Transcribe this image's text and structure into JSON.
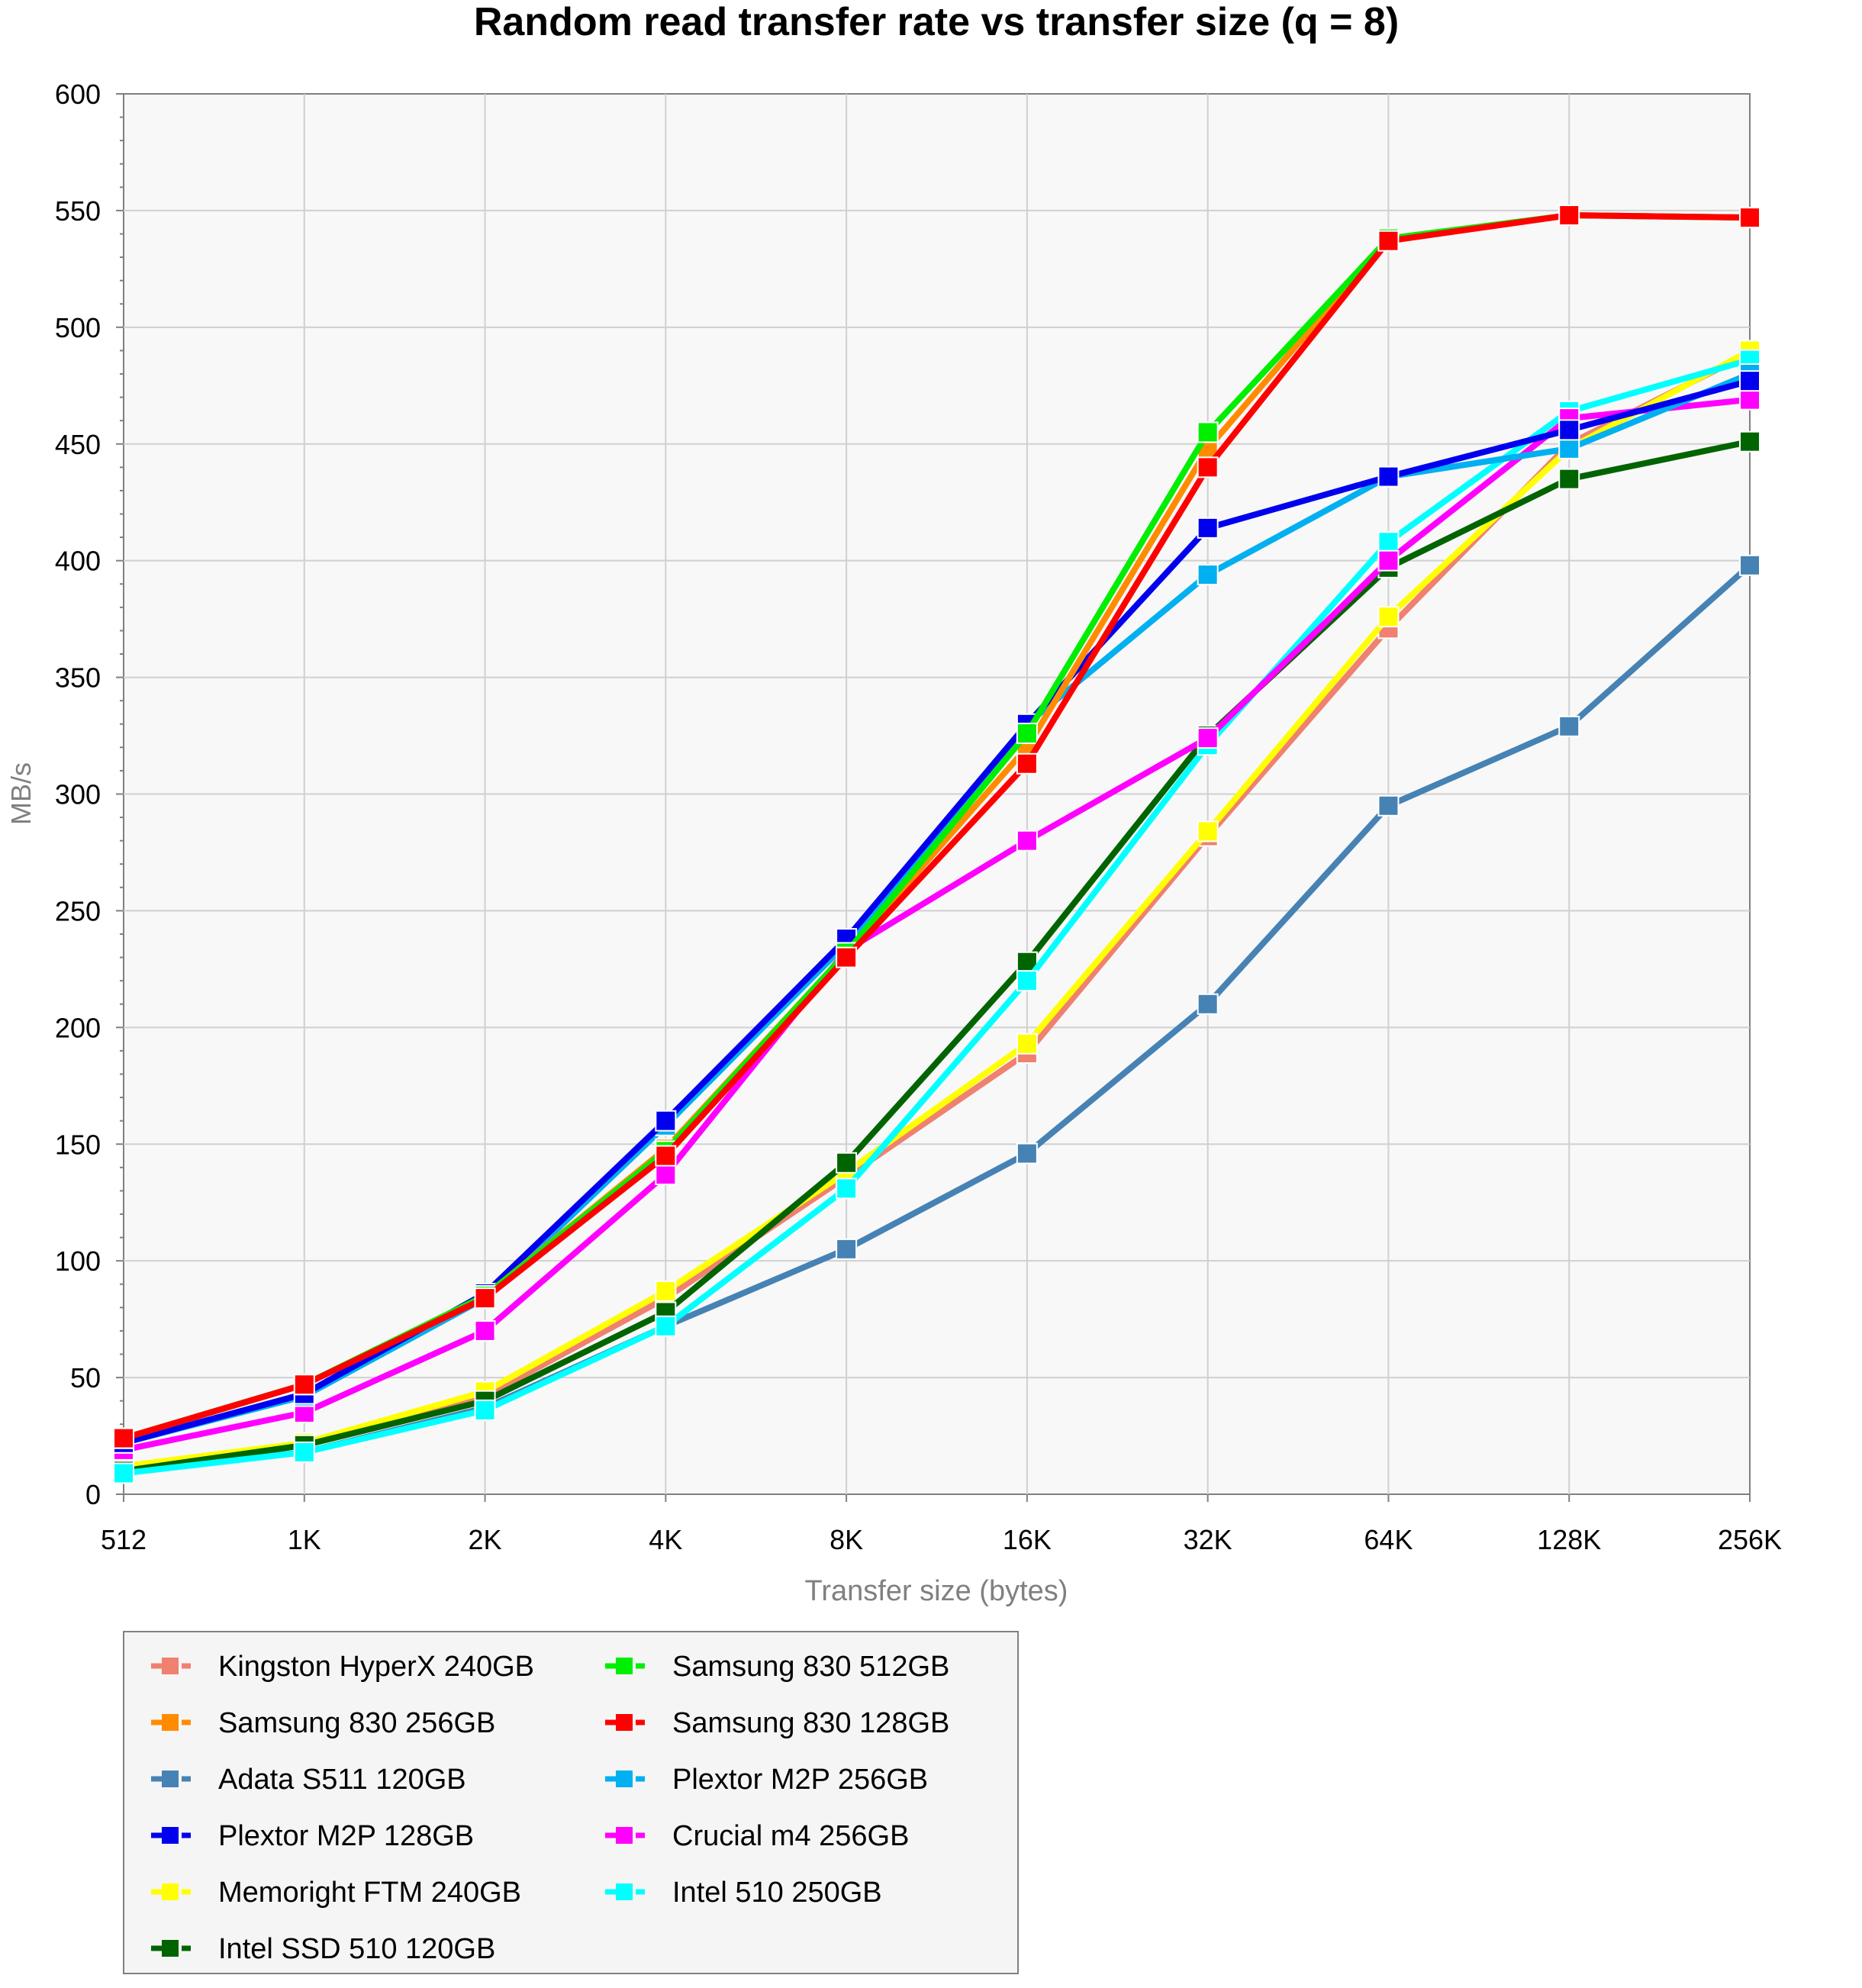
{
  "chart_data": {
    "type": "line",
    "title": "Random read transfer rate vs transfer size (q = 8)",
    "xlabel": "Transfer size (bytes)",
    "ylabel": "MB/s",
    "categories": [
      "512",
      "1K",
      "2K",
      "4K",
      "8K",
      "16K",
      "32K",
      "64K",
      "128K",
      "256K"
    ],
    "ylim": [
      0,
      600
    ],
    "yticks": [
      0,
      50,
      100,
      150,
      200,
      250,
      300,
      350,
      400,
      450,
      500,
      550,
      600
    ],
    "grid": true,
    "legend_position": "bottom-left",
    "series": [
      {
        "name": "Kingston HyperX 240GB",
        "color": "#f08070",
        "values": [
          12,
          21,
          42,
          84,
          136,
          189,
          282,
          371,
          450,
          489
        ]
      },
      {
        "name": "Samsung 830 256GB",
        "color": "#ff8c00",
        "values": [
          24,
          47,
          85,
          148,
          232,
          320,
          448,
          538,
          548,
          547
        ]
      },
      {
        "name": "Adata S511 120GB",
        "color": "#4682b4",
        "values": [
          10,
          18,
          37,
          72,
          105,
          146,
          210,
          295,
          329,
          398
        ]
      },
      {
        "name": "Plextor M2P 128GB",
        "color": "#0000ee",
        "values": [
          22,
          43,
          86,
          160,
          238,
          330,
          414,
          436,
          456,
          477
        ]
      },
      {
        "name": "Memoright FTM 240GB",
        "color": "#ffff00",
        "values": [
          12,
          22,
          44,
          87,
          138,
          193,
          284,
          376,
          448,
          490
        ]
      },
      {
        "name": "Intel SSD 510 120GB",
        "color": "#006400",
        "values": [
          10,
          21,
          40,
          78,
          142,
          228,
          325,
          397,
          435,
          451
        ]
      },
      {
        "name": "Samsung 830 512GB",
        "color": "#00ee00",
        "values": [
          24,
          47,
          85,
          147,
          232,
          326,
          455,
          538,
          548,
          547
        ]
      },
      {
        "name": "Samsung 830 128GB",
        "color": "#ff0000",
        "values": [
          24,
          47,
          84,
          145,
          230,
          313,
          440,
          537,
          548,
          547
        ]
      },
      {
        "name": "Plextor M2P 256GB",
        "color": "#00b0f0",
        "values": [
          22,
          42,
          84,
          158,
          236,
          330,
          394,
          436,
          448,
          480
        ]
      },
      {
        "name": "Crucial m4 256GB",
        "color": "#ff00ff",
        "values": [
          19,
          35,
          70,
          137,
          233,
          280,
          324,
          400,
          461,
          469
        ]
      },
      {
        "name": "Intel 510 250GB",
        "color": "#00ffff",
        "values": [
          9,
          18,
          36,
          72,
          131,
          220,
          321,
          408,
          464,
          486
        ]
      }
    ]
  }
}
